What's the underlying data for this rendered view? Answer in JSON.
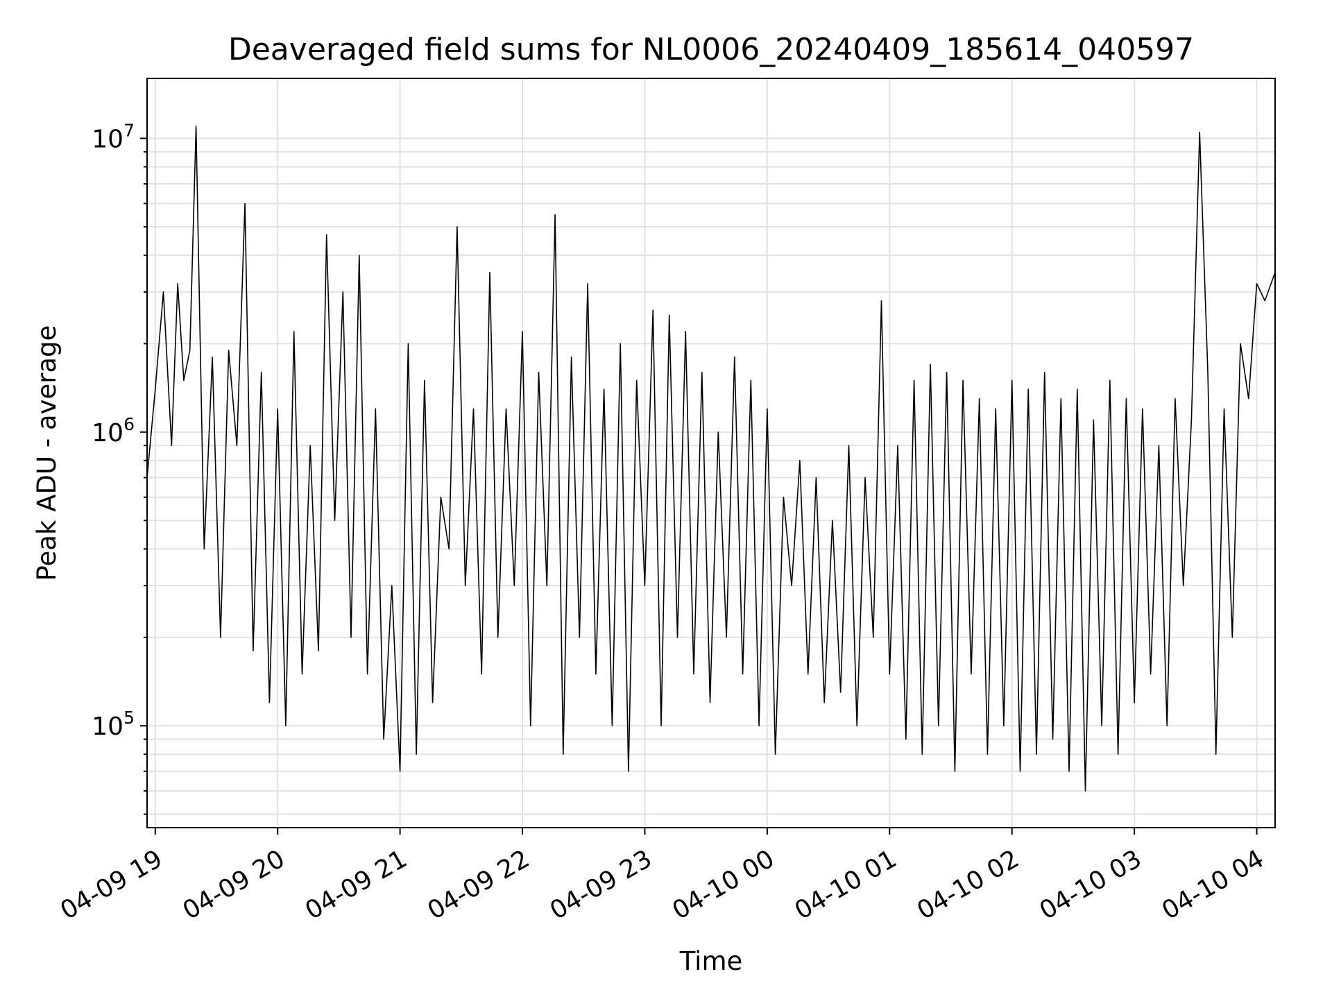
{
  "chart_data": {
    "type": "line",
    "title": "Deaveraged field sums for NL0006_20240409_185614_040597",
    "xlabel": "Time",
    "ylabel": "Peak ADU - average",
    "yscale": "log",
    "ylim": [
      45000,
      16000000
    ],
    "xlim": [
      "2024-04-09 18:56",
      "2024-04-10 04:09"
    ],
    "grid": true,
    "line_color": "#000000",
    "x_ticks": [
      {
        "value": "2024-04-09 19:00",
        "label": "04-09 19"
      },
      {
        "value": "2024-04-09 20:00",
        "label": "04-09 20"
      },
      {
        "value": "2024-04-09 21:00",
        "label": "04-09 21"
      },
      {
        "value": "2024-04-09 22:00",
        "label": "04-09 22"
      },
      {
        "value": "2024-04-09 23:00",
        "label": "04-09 23"
      },
      {
        "value": "2024-04-10 00:00",
        "label": "04-10 00"
      },
      {
        "value": "2024-04-10 01:00",
        "label": "04-10 01"
      },
      {
        "value": "2024-04-10 02:00",
        "label": "04-10 02"
      },
      {
        "value": "2024-04-10 03:00",
        "label": "04-10 03"
      },
      {
        "value": "2024-04-10 04:00",
        "label": "04-10 04"
      }
    ],
    "y_ticks": [
      {
        "value": 100000,
        "base": "10",
        "exp": "5"
      },
      {
        "value": 1000000,
        "base": "10",
        "exp": "6"
      },
      {
        "value": 10000000,
        "base": "10",
        "exp": "7"
      }
    ],
    "series": [
      {
        "x": [
          "2024-04-09 18:56",
          "2024-04-09 19:00",
          "2024-04-09 19:04",
          "2024-04-09 19:08",
          "2024-04-09 19:11",
          "2024-04-09 19:14",
          "2024-04-09 19:17",
          "2024-04-09 19:20",
          "2024-04-09 19:24",
          "2024-04-09 19:28",
          "2024-04-09 19:32",
          "2024-04-09 19:36",
          "2024-04-09 19:40",
          "2024-04-09 19:44",
          "2024-04-09 19:48",
          "2024-04-09 19:52",
          "2024-04-09 19:56",
          "2024-04-09 20:00",
          "2024-04-09 20:04",
          "2024-04-09 20:08",
          "2024-04-09 20:12",
          "2024-04-09 20:16",
          "2024-04-09 20:20",
          "2024-04-09 20:24",
          "2024-04-09 20:28",
          "2024-04-09 20:32",
          "2024-04-09 20:36",
          "2024-04-09 20:40",
          "2024-04-09 20:44",
          "2024-04-09 20:48",
          "2024-04-09 20:52",
          "2024-04-09 20:56",
          "2024-04-09 21:00",
          "2024-04-09 21:04",
          "2024-04-09 21:08",
          "2024-04-09 21:12",
          "2024-04-09 21:16",
          "2024-04-09 21:20",
          "2024-04-09 21:24",
          "2024-04-09 21:28",
          "2024-04-09 21:32",
          "2024-04-09 21:36",
          "2024-04-09 21:40",
          "2024-04-09 21:44",
          "2024-04-09 21:48",
          "2024-04-09 21:52",
          "2024-04-09 21:56",
          "2024-04-09 22:00",
          "2024-04-09 22:04",
          "2024-04-09 22:08",
          "2024-04-09 22:12",
          "2024-04-09 22:16",
          "2024-04-09 22:20",
          "2024-04-09 22:24",
          "2024-04-09 22:28",
          "2024-04-09 22:32",
          "2024-04-09 22:36",
          "2024-04-09 22:40",
          "2024-04-09 22:44",
          "2024-04-09 22:48",
          "2024-04-09 22:52",
          "2024-04-09 22:56",
          "2024-04-09 23:00",
          "2024-04-09 23:04",
          "2024-04-09 23:08",
          "2024-04-09 23:12",
          "2024-04-09 23:16",
          "2024-04-09 23:20",
          "2024-04-09 23:24",
          "2024-04-09 23:28",
          "2024-04-09 23:32",
          "2024-04-09 23:36",
          "2024-04-09 23:40",
          "2024-04-09 23:44",
          "2024-04-09 23:48",
          "2024-04-09 23:52",
          "2024-04-09 23:56",
          "2024-04-10 00:00",
          "2024-04-10 00:04",
          "2024-04-10 00:08",
          "2024-04-10 00:12",
          "2024-04-10 00:16",
          "2024-04-10 00:20",
          "2024-04-10 00:24",
          "2024-04-10 00:28",
          "2024-04-10 00:32",
          "2024-04-10 00:36",
          "2024-04-10 00:40",
          "2024-04-10 00:44",
          "2024-04-10 00:48",
          "2024-04-10 00:52",
          "2024-04-10 00:56",
          "2024-04-10 01:00",
          "2024-04-10 01:04",
          "2024-04-10 01:08",
          "2024-04-10 01:12",
          "2024-04-10 01:16",
          "2024-04-10 01:20",
          "2024-04-10 01:24",
          "2024-04-10 01:28",
          "2024-04-10 01:32",
          "2024-04-10 01:36",
          "2024-04-10 01:40",
          "2024-04-10 01:44",
          "2024-04-10 01:48",
          "2024-04-10 01:52",
          "2024-04-10 01:56",
          "2024-04-10 02:00",
          "2024-04-10 02:04",
          "2024-04-10 02:08",
          "2024-04-10 02:12",
          "2024-04-10 02:16",
          "2024-04-10 02:20",
          "2024-04-10 02:24",
          "2024-04-10 02:28",
          "2024-04-10 02:32",
          "2024-04-10 02:36",
          "2024-04-10 02:40",
          "2024-04-10 02:44",
          "2024-04-10 02:48",
          "2024-04-10 02:52",
          "2024-04-10 02:56",
          "2024-04-10 03:00",
          "2024-04-10 03:04",
          "2024-04-10 03:08",
          "2024-04-10 03:12",
          "2024-04-10 03:16",
          "2024-04-10 03:20",
          "2024-04-10 03:24",
          "2024-04-10 03:28",
          "2024-04-10 03:32",
          "2024-04-10 03:36",
          "2024-04-10 03:40",
          "2024-04-10 03:44",
          "2024-04-10 03:48",
          "2024-04-10 03:52",
          "2024-04-10 03:56",
          "2024-04-10 04:00",
          "2024-04-10 04:04",
          "2024-04-10 04:09"
        ],
        "values": [
          700000,
          1400000,
          3000000,
          900000,
          3200000,
          1500000,
          1900000,
          11000000,
          400000,
          1800000,
          200000,
          1900000,
          900000,
          6000000,
          180000,
          1600000,
          120000,
          1200000,
          100000,
          2200000,
          150000,
          900000,
          180000,
          4700000,
          500000,
          3000000,
          200000,
          4000000,
          150000,
          1200000,
          90000,
          300000,
          70000,
          2000000,
          80000,
          1500000,
          120000,
          600000,
          400000,
          5000000,
          300000,
          1200000,
          150000,
          3500000,
          200000,
          1200000,
          300000,
          2200000,
          100000,
          1600000,
          300000,
          5500000,
          80000,
          1800000,
          200000,
          3200000,
          150000,
          1400000,
          100000,
          2000000,
          70000,
          1500000,
          300000,
          2600000,
          100000,
          2500000,
          200000,
          2200000,
          150000,
          1600000,
          120000,
          1000000,
          200000,
          1800000,
          150000,
          1500000,
          100000,
          1200000,
          80000,
          600000,
          300000,
          800000,
          150000,
          700000,
          120000,
          500000,
          130000,
          900000,
          100000,
          700000,
          200000,
          2800000,
          150000,
          900000,
          90000,
          1500000,
          80000,
          1700000,
          100000,
          1600000,
          70000,
          1500000,
          150000,
          1300000,
          80000,
          1200000,
          100000,
          1500000,
          70000,
          1400000,
          80000,
          1600000,
          90000,
          1300000,
          70000,
          1400000,
          60000,
          1100000,
          100000,
          1500000,
          80000,
          1300000,
          120000,
          1200000,
          150000,
          900000,
          100000,
          1300000,
          300000,
          1100000,
          10500000,
          1600000,
          80000,
          1200000,
          200000,
          2000000,
          1300000,
          3200000,
          2800000,
          3500000
        ]
      }
    ]
  }
}
